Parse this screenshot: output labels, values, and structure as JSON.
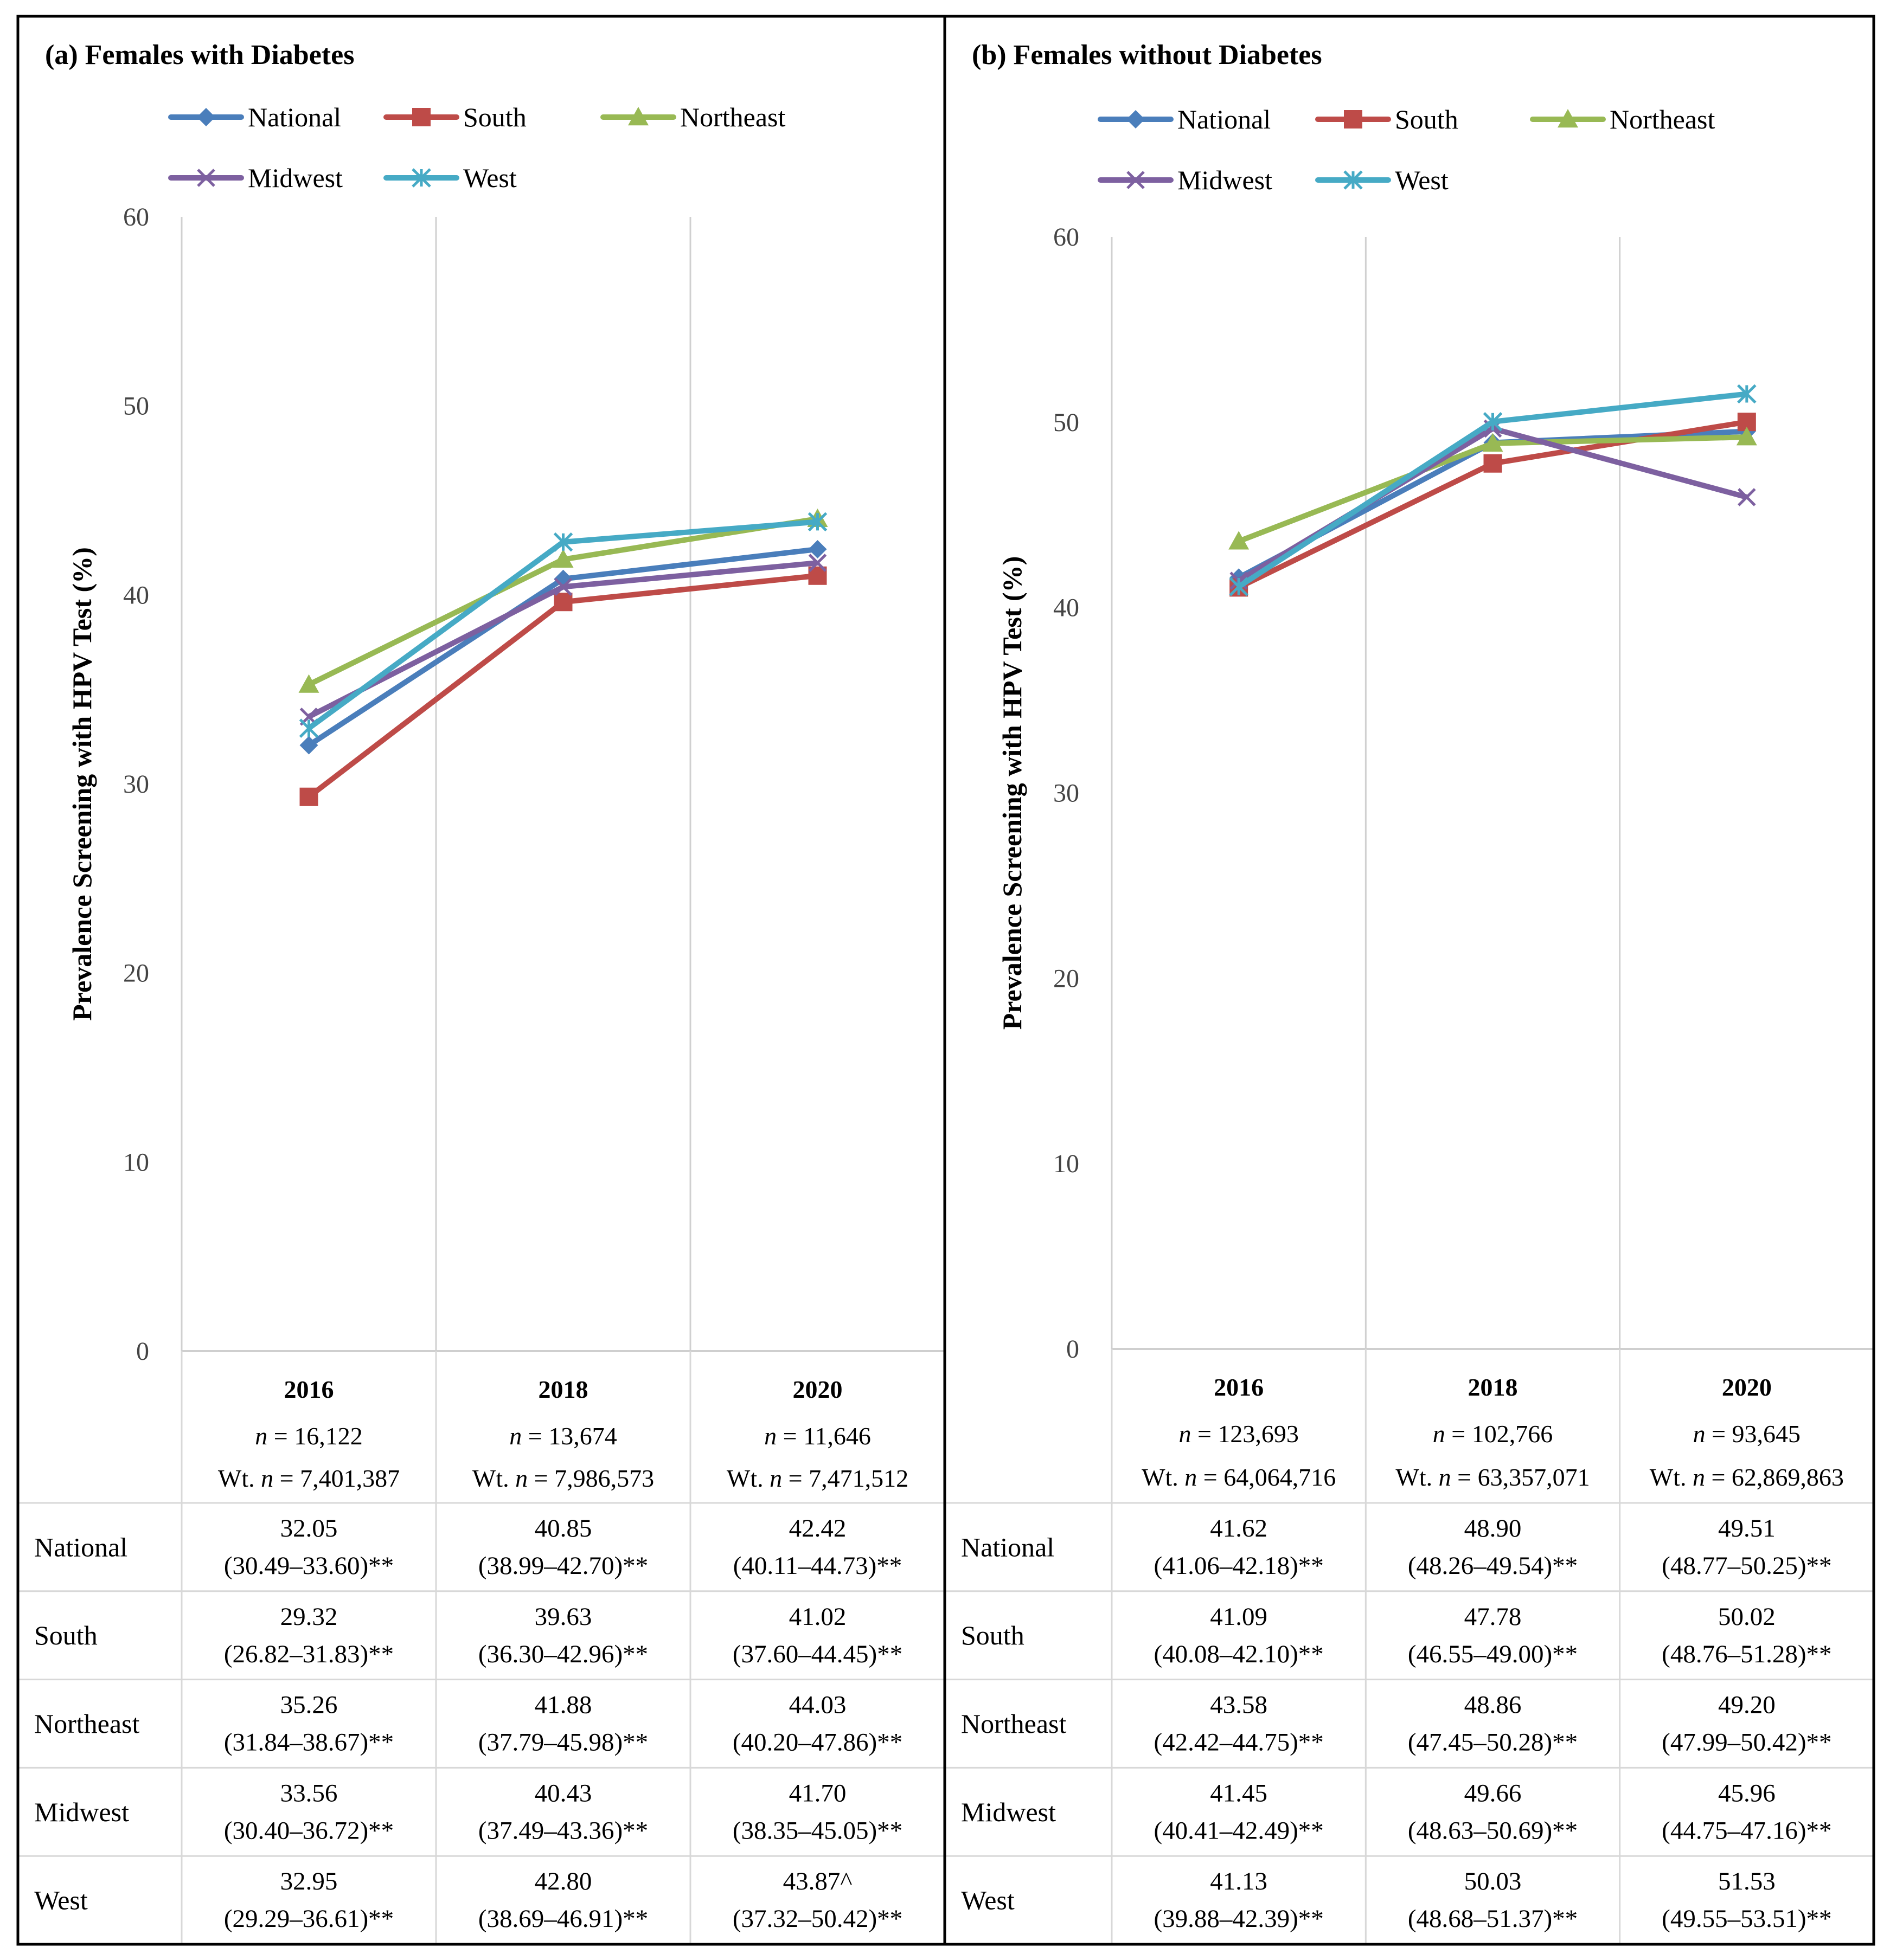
{
  "colors": {
    "National": "#4a7ebb",
    "South": "#be4b48",
    "Northeast": "#98b954",
    "Midwest": "#7d60a0",
    "West": "#46aac5"
  },
  "series_names": [
    "National",
    "South",
    "Northeast",
    "Midwest",
    "West"
  ],
  "markers": {
    "National": "diamond",
    "South": "square",
    "Northeast": "triangle",
    "Midwest": "x",
    "West": "asterisk"
  },
  "chart_data": [
    {
      "type": "line",
      "title": "(a) Females with Diabetes",
      "ylabel": "Prevalence Screening with HPV Test (%)",
      "ylim": [
        0,
        60
      ],
      "yticks": [
        "0",
        "10",
        "20",
        "30",
        "40",
        "50",
        "60"
      ],
      "categories": [
        "2016",
        "2018",
        "2020"
      ],
      "n_labels": [
        "n = 16,122",
        "n = 13,674",
        "n = 11,646"
      ],
      "wt_labels": [
        "Wt. n = 7,401,387",
        "Wt. n = 7,986,573",
        "Wt. n = 7,471,512"
      ],
      "series": [
        {
          "name": "National",
          "values": [
            32.05,
            40.85,
            42.42
          ],
          "ci": [
            "(30.49–33.60)**",
            "(38.99–42.70)**",
            "(40.11–44.73)**"
          ],
          "value_labels": [
            "32.05",
            "40.85",
            "42.42"
          ]
        },
        {
          "name": "South",
          "values": [
            29.32,
            39.63,
            41.02
          ],
          "ci": [
            "(26.82–31.83)**",
            "(36.30–42.96)**",
            "(37.60–44.45)**"
          ],
          "value_labels": [
            "29.32",
            "39.63",
            "41.02"
          ]
        },
        {
          "name": "Northeast",
          "values": [
            35.26,
            41.88,
            44.03
          ],
          "ci": [
            "(31.84–38.67)**",
            "(37.79–45.98)**",
            "(40.20–47.86)**"
          ],
          "value_labels": [
            "35.26",
            "41.88",
            "44.03"
          ]
        },
        {
          "name": "Midwest",
          "values": [
            33.56,
            40.43,
            41.7
          ],
          "ci": [
            "(30.40–36.72)**",
            "(37.49–43.36)**",
            "(38.35–45.05)**"
          ],
          "value_labels": [
            "33.56",
            "40.43",
            "41.70"
          ]
        },
        {
          "name": "West",
          "values": [
            32.95,
            42.8,
            43.87
          ],
          "ci": [
            "(29.29–36.61)**",
            "(38.69–46.91)**",
            "(37.32–50.42)**"
          ],
          "value_labels": [
            "32.95",
            "42.80",
            "43.87^"
          ]
        }
      ]
    },
    {
      "type": "line",
      "title": "(b) Females without Diabetes",
      "ylabel": "Prevalence Screening with HPV Test (%)",
      "ylim": [
        0,
        60
      ],
      "yticks": [
        "0",
        "10",
        "20",
        "30",
        "40",
        "50",
        "60"
      ],
      "categories": [
        "2016",
        "2018",
        "2020"
      ],
      "n_labels": [
        "n = 123,693",
        "n = 102,766",
        "n = 93,645"
      ],
      "wt_labels": [
        "Wt. n = 64,064,716",
        "Wt. n = 63,357,071",
        "Wt. n = 62,869,863"
      ],
      "series": [
        {
          "name": "National",
          "values": [
            41.62,
            48.9,
            49.51
          ],
          "ci": [
            "(41.06–42.18)**",
            "(48.26–49.54)**",
            "(48.77–50.25)**"
          ],
          "value_labels": [
            "41.62",
            "48.90",
            "49.51"
          ]
        },
        {
          "name": "South",
          "values": [
            41.09,
            47.78,
            50.02
          ],
          "ci": [
            "(40.08–42.10)**",
            "(46.55–49.00)**",
            "(48.76–51.28)**"
          ],
          "value_labels": [
            "41.09",
            "47.78",
            "50.02"
          ]
        },
        {
          "name": "Northeast",
          "values": [
            43.58,
            48.86,
            49.2
          ],
          "ci": [
            "(42.42–44.75)**",
            "(47.45–50.28)**",
            "(47.99–50.42)**"
          ],
          "value_labels": [
            "43.58",
            "48.86",
            "49.20"
          ]
        },
        {
          "name": "Midwest",
          "values": [
            41.45,
            49.66,
            45.96
          ],
          "ci": [
            "(40.41–42.49)**",
            "(48.63–50.69)**",
            "(44.75–47.16)**"
          ],
          "value_labels": [
            "41.45",
            "49.66",
            "45.96"
          ]
        },
        {
          "name": "West",
          "values": [
            41.13,
            50.03,
            51.53
          ],
          "ci": [
            "(39.88–42.39)**",
            "(48.68–51.37)**",
            "(49.55–53.51)**"
          ],
          "value_labels": [
            "41.13",
            "50.03",
            "51.53"
          ]
        }
      ]
    }
  ]
}
